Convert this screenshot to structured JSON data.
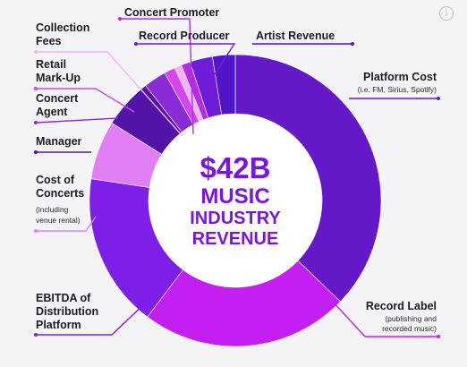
{
  "chart_data": {
    "type": "pie",
    "style": "donut",
    "center_text": [
      "$42B",
      "MUSIC",
      "INDUSTRY",
      "REVENUE"
    ],
    "center_color": "#7a14e0",
    "slices": [
      {
        "label": "Artist Revenue",
        "value": 0,
        "color": "#5b19c9"
      },
      {
        "label": "Platform Cost",
        "sublabel": "(i.e. FM, Sirius, Spotify)",
        "value": 37,
        "color": "#6418c8"
      },
      {
        "label": "Record Label",
        "sublabel": "(publishing and recorded music)",
        "value": 23,
        "color": "#c21ff0"
      },
      {
        "label": "EBITDA of Distribution Platform",
        "value": 17,
        "color": "#7d1fe6"
      },
      {
        "label": "Cost of Concerts",
        "sublabel": "(including venue rental)",
        "value": 6.5,
        "color": "#e27ff4"
      },
      {
        "label": "Manager",
        "value": 5.5,
        "color": "#5413a8"
      },
      {
        "label": "Concert Agent",
        "value": 2.5,
        "color": "#8a2bd8"
      },
      {
        "label": "Retail Mark-Up",
        "value": 1.2,
        "color": "#d445ee"
      },
      {
        "label": "Collection Fees",
        "value": 0.8,
        "color": "#efb5f8"
      },
      {
        "label": "Concert Promoter",
        "value": 1.0,
        "color": "#b12fe3"
      },
      {
        "label": "Record Producer",
        "value": 2.5,
        "color": "#6f1cd8"
      },
      {
        "label": "Artist Revenue",
        "value": 2.5,
        "color": "#4f15c6"
      }
    ],
    "labels": {
      "concert_promoter": "Concert Promoter",
      "collection_fees": [
        "Collection",
        "Fees"
      ],
      "record_producer": "Record Producer",
      "artist_revenue": "Artist Revenue",
      "platform_cost": "Platform Cost",
      "platform_cost_sub": "(i.e. FM, Sirius, Spotify)",
      "retail_markup": [
        "Retail",
        "Mark-Up"
      ],
      "concert_agent": [
        "Concert",
        "Agent"
      ],
      "manager": "Manager",
      "cost_of_concerts": [
        "Cost of",
        "Concerts"
      ],
      "cost_of_concerts_sub": [
        "(including",
        "venue rental)"
      ],
      "ebitda": [
        "EBITDA of",
        "Distribution",
        "Platform"
      ],
      "record_label": "Record Label",
      "record_label_sub": [
        "(publishing and",
        "recorded music)"
      ]
    }
  },
  "icons": {
    "info": "info-icon",
    "info_glyph": "i"
  }
}
